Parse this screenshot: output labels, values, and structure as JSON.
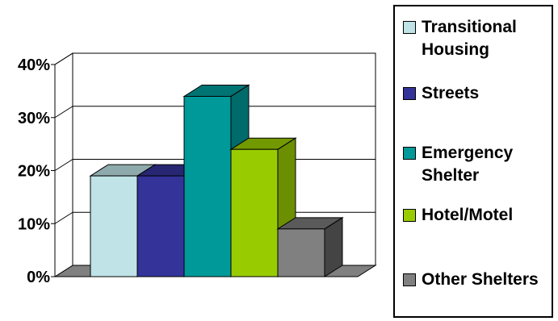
{
  "chart_data": {
    "type": "bar",
    "categories": [
      "Transitional Housing",
      "Streets",
      "Emergency Shelter",
      "Hotel/Motel",
      "Other Shelters"
    ],
    "values": [
      19,
      19,
      34,
      24,
      9
    ],
    "ylim": [
      0,
      40
    ],
    "yticks": [
      0,
      10,
      20,
      30,
      40
    ],
    "ytick_labels": [
      "0%",
      "10%",
      "20%",
      "30%",
      "40%"
    ],
    "grid": true,
    "legend_position": "right",
    "colors": [
      "#BFE3E7",
      "#333399",
      "#009999",
      "#99CC00",
      "#808080"
    ],
    "side_colors": [
      "#86A0A3",
      "#23236B",
      "#006B6B",
      "#6B8F00",
      "#444444"
    ],
    "top_colors": [
      "#8FAAAD",
      "#262673",
      "#007373",
      "#739900",
      "#5A5A5A"
    ]
  },
  "legend": {
    "items": [
      {
        "label": "Transitional Housing",
        "color": "#BFE3E7"
      },
      {
        "label": "Streets",
        "color": "#333399"
      },
      {
        "label": "Emergency Shelter",
        "color": "#009999"
      },
      {
        "label": "Hotel/Motel",
        "color": "#99CC00"
      },
      {
        "label": "Other Shelters",
        "color": "#808080"
      }
    ]
  }
}
